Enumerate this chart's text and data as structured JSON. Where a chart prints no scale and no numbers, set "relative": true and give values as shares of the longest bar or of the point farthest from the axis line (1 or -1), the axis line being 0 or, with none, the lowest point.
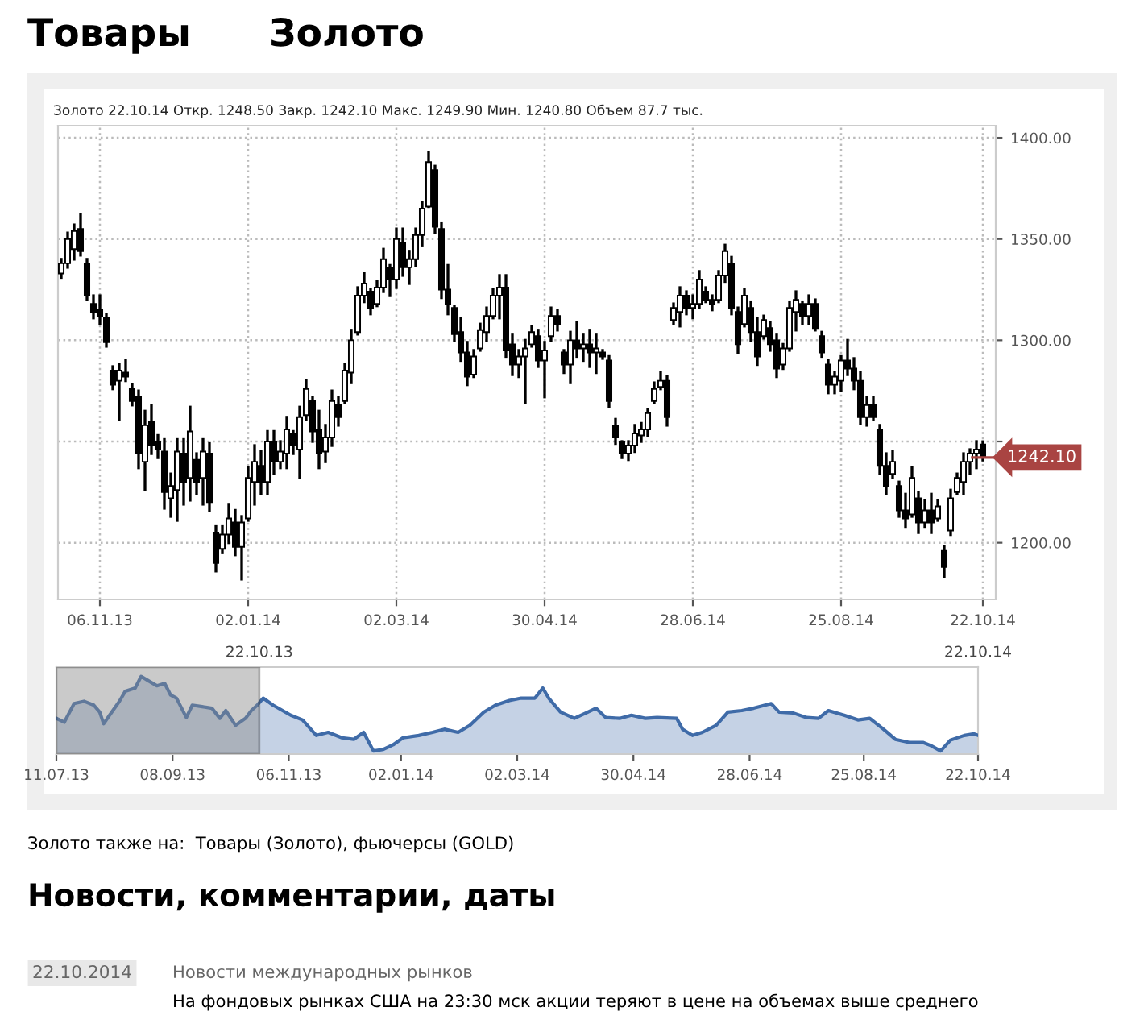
{
  "chart_data": [
    {
      "type": "candlestick",
      "title": "Золото",
      "subtitle": "Золото 22.10.14 Откр. 1248.50 Закр. 1242.10 Макс. 1249.90 Мин. 1240.80 Объем 87.7 тыс.",
      "annotations": [
        "Товары",
        "Золото также на:  Товары (Золото), фьючерсы (GOLD)",
        "Новости, комментарии, даты",
        "22.10.2014",
        "Новости международных рынков",
        "На фондовых рынках США на 23:30 мск акции теряют в цене на объемах выше среднего"
      ],
      "categories": [
        null,
        null,
        null,
        null,
        null,
        null,
        "06.11.13",
        null,
        null,
        null,
        null,
        null,
        null,
        null,
        null,
        null,
        null,
        null,
        null,
        null,
        null,
        null,
        null,
        null,
        null,
        null,
        null,
        null,
        null,
        "02.01.14",
        null,
        null,
        null,
        null,
        null,
        null,
        null,
        null,
        null,
        null,
        null,
        null,
        null,
        null,
        null,
        null,
        null,
        null,
        null,
        null,
        null,
        null,
        "02.03.14",
        null,
        null,
        null,
        null,
        null,
        null,
        null,
        null,
        null,
        null,
        null,
        null,
        null,
        null,
        null,
        null,
        null,
        null,
        null,
        null,
        null,
        null,
        "30.04.14",
        null,
        null,
        null,
        null,
        null,
        null,
        null,
        null,
        null,
        null,
        null,
        null,
        null,
        null,
        null,
        null,
        null,
        null,
        null,
        null,
        null,
        null,
        "28.06.14",
        null,
        null,
        null,
        null,
        null,
        null,
        null,
        null,
        null,
        null,
        null,
        null,
        null,
        null,
        null,
        null,
        null,
        null,
        null,
        null,
        null,
        null,
        "25.08.14",
        null,
        null,
        null,
        null,
        null,
        null,
        null,
        null,
        null,
        null,
        null,
        null,
        null,
        null,
        null,
        null,
        null,
        null,
        null,
        null,
        null,
        "22.10.14"
      ],
      "ohlc": [
        [
          1333,
          1340,
          1331,
          1338
        ],
        [
          1338,
          1353,
          1336,
          1350
        ],
        [
          1345,
          1357,
          1340,
          1354
        ],
        [
          1355,
          1362,
          1342,
          1344
        ],
        [
          1338,
          1340,
          1320,
          1322
        ],
        [
          1318,
          1322,
          1311,
          1314
        ],
        [
          1315,
          1322,
          1308,
          1312
        ],
        [
          1311,
          1313,
          1297,
          1299
        ],
        [
          1285,
          1287,
          1276,
          1278
        ],
        [
          1280,
          1288,
          1261,
          1285
        ],
        [
          1284,
          1290,
          1280,
          1282
        ],
        [
          1276,
          1278,
          1268,
          1270
        ],
        [
          1272,
          1275,
          1237,
          1244
        ],
        [
          1240,
          1265,
          1226,
          1258
        ],
        [
          1260,
          1268,
          1244,
          1248
        ],
        [
          1250,
          1253,
          1242,
          1246
        ],
        [
          1245,
          1251,
          1217,
          1225
        ],
        [
          1222,
          1234,
          1213,
          1228
        ],
        [
          1226,
          1251,
          1211,
          1245
        ],
        [
          1244,
          1251,
          1219,
          1230
        ],
        [
          1232,
          1267,
          1221,
          1255
        ],
        [
          1241,
          1244,
          1224,
          1230
        ],
        [
          1232,
          1251,
          1219,
          1245
        ],
        [
          1244,
          1249,
          1216,
          1220
        ],
        [
          1205,
          1208,
          1186,
          1190
        ],
        [
          1197,
          1208,
          1195,
          1204
        ],
        [
          1204,
          1219,
          1200,
          1212
        ],
        [
          1210,
          1216,
          1194,
          1198
        ],
        [
          1198,
          1213,
          1182,
          1210
        ],
        [
          1212,
          1237,
          1211,
          1232
        ],
        [
          1230,
          1248,
          1219,
          1240
        ],
        [
          1238,
          1245,
          1224,
          1230
        ],
        [
          1230,
          1255,
          1224,
          1250
        ],
        [
          1250,
          1255,
          1234,
          1240
        ],
        [
          1240,
          1250,
          1237,
          1245
        ],
        [
          1244,
          1262,
          1237,
          1256
        ],
        [
          1254,
          1255,
          1244,
          1248
        ],
        [
          1246,
          1267,
          1232,
          1262
        ],
        [
          1263,
          1280,
          1261,
          1276
        ],
        [
          1270,
          1272,
          1250,
          1255
        ],
        [
          1256,
          1265,
          1237,
          1244
        ],
        [
          1245,
          1258,
          1240,
          1252
        ],
        [
          1252,
          1275,
          1248,
          1270
        ],
        [
          1268,
          1272,
          1258,
          1262
        ],
        [
          1270,
          1288,
          1269,
          1285
        ],
        [
          1284,
          1305,
          1279,
          1300
        ],
        [
          1304,
          1326,
          1303,
          1322
        ],
        [
          1322,
          1333,
          1319,
          1328
        ],
        [
          1324,
          1325,
          1313,
          1316
        ],
        [
          1318,
          1329,
          1317,
          1326
        ],
        [
          1326,
          1345,
          1324,
          1340
        ],
        [
          1336,
          1337,
          1322,
          1330
        ],
        [
          1330,
          1355,
          1326,
          1350
        ],
        [
          1348,
          1355,
          1332,
          1336
        ],
        [
          1336,
          1344,
          1328,
          1340
        ],
        [
          1340,
          1355,
          1337,
          1352
        ],
        [
          1352,
          1368,
          1347,
          1365
        ],
        [
          1366,
          1393,
          1366,
          1388
        ],
        [
          1384,
          1386,
          1353,
          1356
        ],
        [
          1355,
          1358,
          1321,
          1325
        ],
        [
          1325,
          1337,
          1313,
          1318
        ],
        [
          1316,
          1317,
          1300,
          1303
        ],
        [
          1304,
          1311,
          1290,
          1294
        ],
        [
          1294,
          1299,
          1278,
          1282
        ],
        [
          1283,
          1295,
          1282,
          1292
        ],
        [
          1296,
          1308,
          1295,
          1305
        ],
        [
          1304,
          1316,
          1300,
          1312
        ],
        [
          1312,
          1325,
          1311,
          1322
        ],
        [
          1322,
          1332,
          1311,
          1326
        ],
        [
          1326,
          1332,
          1292,
          1295
        ],
        [
          1298,
          1303,
          1283,
          1288
        ],
        [
          1288,
          1295,
          1282,
          1292
        ],
        [
          1292,
          1300,
          1269,
          1296
        ],
        [
          1298,
          1307,
          1297,
          1304
        ],
        [
          1302,
          1305,
          1287,
          1290
        ],
        [
          1290,
          1299,
          1272,
          1295
        ],
        [
          1302,
          1316,
          1300,
          1312
        ],
        [
          1312,
          1315,
          1305,
          1308
        ],
        [
          1294,
          1295,
          1284,
          1288
        ],
        [
          1288,
          1304,
          1279,
          1300
        ],
        [
          1300,
          1309,
          1292,
          1296
        ],
        [
          1296,
          1303,
          1290,
          1298
        ],
        [
          1298,
          1305,
          1287,
          1294
        ],
        [
          1294,
          1303,
          1284,
          1296
        ],
        [
          1294,
          1295,
          1291,
          1292
        ],
        [
          1290,
          1292,
          1267,
          1270
        ],
        [
          1258,
          1261,
          1249,
          1252
        ],
        [
          1250,
          1250,
          1242,
          1244
        ],
        [
          1244,
          1250,
          1241,
          1248
        ],
        [
          1248,
          1258,
          1245,
          1254
        ],
        [
          1253,
          1259,
          1250,
          1256
        ],
        [
          1256,
          1266,
          1253,
          1264
        ],
        [
          1270,
          1279,
          1269,
          1276
        ],
        [
          1277,
          1284,
          1276,
          1280
        ],
        [
          1280,
          1282,
          1258,
          1262
        ],
        [
          1310,
          1318,
          1308,
          1316
        ],
        [
          1314,
          1326,
          1307,
          1322
        ],
        [
          1322,
          1324,
          1313,
          1316
        ],
        [
          1316,
          1322,
          1311,
          1318
        ],
        [
          1318,
          1334,
          1316,
          1330
        ],
        [
          1324,
          1326,
          1319,
          1320
        ],
        [
          1320,
          1322,
          1315,
          1318
        ],
        [
          1320,
          1334,
          1319,
          1332
        ],
        [
          1332,
          1347,
          1329,
          1344
        ],
        [
          1338,
          1341,
          1313,
          1316
        ],
        [
          1314,
          1316,
          1294,
          1298
        ],
        [
          1308,
          1325,
          1307,
          1322
        ],
        [
          1316,
          1319,
          1300,
          1304
        ],
        [
          1304,
          1311,
          1288,
          1292
        ],
        [
          1302,
          1312,
          1301,
          1310
        ],
        [
          1306,
          1309,
          1295,
          1298
        ],
        [
          1300,
          1303,
          1282,
          1286
        ],
        [
          1288,
          1298,
          1286,
          1296
        ],
        [
          1296,
          1319,
          1295,
          1316
        ],
        [
          1314,
          1324,
          1305,
          1320
        ],
        [
          1318,
          1319,
          1308,
          1312
        ],
        [
          1312,
          1322,
          1308,
          1318
        ],
        [
          1318,
          1320,
          1305,
          1306
        ],
        [
          1302,
          1304,
          1292,
          1294
        ],
        [
          1288,
          1290,
          1274,
          1278
        ],
        [
          1278,
          1284,
          1274,
          1282
        ],
        [
          1280,
          1292,
          1275,
          1290
        ],
        [
          1290,
          1300,
          1283,
          1286
        ],
        [
          1286,
          1291,
          1276,
          1280
        ],
        [
          1280,
          1284,
          1259,
          1262
        ],
        [
          1262,
          1272,
          1258,
          1268
        ],
        [
          1268,
          1272,
          1261,
          1262
        ],
        [
          1256,
          1258,
          1234,
          1238
        ],
        [
          1238,
          1244,
          1224,
          1228
        ],
        [
          1234,
          1245,
          1232,
          1240
        ],
        [
          1228,
          1230,
          1213,
          1216
        ],
        [
          1216,
          1224,
          1208,
          1212
        ],
        [
          1214,
          1237,
          1213,
          1232
        ],
        [
          1222,
          1225,
          1205,
          1210
        ],
        [
          1210,
          1221,
          1208,
          1216
        ],
        [
          1216,
          1224,
          1205,
          1210
        ],
        [
          1212,
          1221,
          1211,
          1218
        ],
        [
          1196,
          1198,
          1183,
          1188
        ],
        [
          1206,
          1226,
          1204,
          1222
        ],
        [
          1225,
          1234,
          1224,
          1232
        ],
        [
          1230,
          1244,
          1224,
          1240
        ],
        [
          1240,
          1246,
          1234,
          1244
        ],
        [
          1244,
          1250,
          1237,
          1246
        ],
        [
          1248.5,
          1249.9,
          1240.8,
          1242.1
        ]
      ],
      "color": "#000000",
      "ylim": [
        1172,
        1406
      ],
      "yticks": [
        {
          "value": 1200,
          "label": "1200.00"
        },
        {
          "value": 1250,
          "label": null
        },
        {
          "value": 1300,
          "label": "1300.00"
        },
        {
          "value": 1350,
          "label": "1350.00"
        },
        {
          "value": 1400,
          "label": "1400.00"
        }
      ],
      "grid": true,
      "ref_lines": [
        {
          "axis": "y",
          "value": 1242.1,
          "label": "1242.10",
          "color": "#a94442"
        }
      ]
    },
    {
      "type": "area",
      "relative": true,
      "tick_labels": "x",
      "x": [
        "2013-07-11",
        "2013-07-15",
        "2013-07-20",
        "2013-07-25",
        "2013-07-30",
        "2013-08-02",
        "2013-08-04",
        "2013-08-07",
        "2013-08-12",
        "2013-08-15",
        "2013-08-20",
        "2013-08-23",
        "2013-08-27",
        "2013-08-31",
        "2013-09-04",
        "2013-09-07",
        "2013-09-10",
        "2013-09-15",
        "2013-09-18",
        "2013-09-23",
        "2013-09-28",
        "2013-10-02",
        "2013-10-05",
        "2013-10-10",
        "2013-10-15",
        "2013-10-18",
        "2013-10-21",
        "2013-10-24",
        "2013-10-29",
        "2013-11-07",
        "2013-11-13",
        "2013-11-20",
        "2013-11-26",
        "2013-12-03",
        "2013-12-09",
        "2013-12-14",
        "2013-12-19",
        "2013-12-24",
        "2013-12-29",
        "2014-01-03",
        "2014-01-11",
        "2014-01-18",
        "2014-01-24",
        "2014-01-31",
        "2014-02-06",
        "2014-02-13",
        "2014-02-19",
        "2014-02-26",
        "2014-03-04",
        "2014-03-11",
        "2014-03-15",
        "2014-03-18",
        "2014-03-24",
        "2014-03-31",
        "2014-04-06",
        "2014-04-11",
        "2014-04-16",
        "2014-04-23",
        "2014-04-29",
        "2014-05-06",
        "2014-05-12",
        "2014-05-22",
        "2014-05-25",
        "2014-05-30",
        "2014-06-04",
        "2014-06-11",
        "2014-06-17",
        "2014-06-24",
        "2014-06-30",
        "2014-07-09",
        "2014-07-13",
        "2014-07-20",
        "2014-07-27",
        "2014-08-02",
        "2014-08-07",
        "2014-08-15",
        "2014-08-22",
        "2014-08-28",
        "2014-09-04",
        "2014-09-10",
        "2014-09-17",
        "2014-09-24",
        "2014-09-28",
        "2014-10-03",
        "2014-10-08",
        "2014-10-15",
        "2014-10-20",
        "2014-10-22"
      ],
      "series": [
        {
          "color": "#3f6ba8",
          "values": [
            0.46,
            0.41,
            0.65,
            0.68,
            0.63,
            0.54,
            0.39,
            0.5,
            0.68,
            0.81,
            0.85,
            1.0,
            0.94,
            0.88,
            0.91,
            0.76,
            0.72,
            0.47,
            0.63,
            0.61,
            0.59,
            0.46,
            0.56,
            0.37,
            0.46,
            0.56,
            0.63,
            0.72,
            0.63,
            0.5,
            0.44,
            0.24,
            0.28,
            0.21,
            0.19,
            0.28,
            0.04,
            0.06,
            0.12,
            0.21,
            0.24,
            0.28,
            0.32,
            0.28,
            0.37,
            0.54,
            0.63,
            0.69,
            0.72,
            0.72,
            0.85,
            0.72,
            0.54,
            0.46,
            0.53,
            0.59,
            0.47,
            0.46,
            0.5,
            0.46,
            0.47,
            0.46,
            0.32,
            0.24,
            0.28,
            0.37,
            0.54,
            0.56,
            0.59,
            0.65,
            0.54,
            0.53,
            0.47,
            0.46,
            0.56,
            0.5,
            0.44,
            0.46,
            0.32,
            0.19,
            0.15,
            0.15,
            0.11,
            0.04,
            0.18,
            0.24,
            0.26,
            0.24
          ]
        }
      ],
      "xlim": [
        "2013-07-11",
        "2014-10-22"
      ],
      "xticks": [
        {
          "value": "2013-07-11",
          "label": "11.07.13"
        },
        {
          "value": "2013-09-08",
          "label": "08.09.13"
        },
        {
          "value": "2013-11-06",
          "label": "06.11.13"
        },
        {
          "value": "2014-01-02",
          "label": "02.01.14"
        },
        {
          "value": "2014-03-02",
          "label": "02.03.14"
        },
        {
          "value": "2014-04-30",
          "label": "30.04.14"
        },
        {
          "value": "2014-06-28",
          "label": "28.06.14"
        },
        {
          "value": "2014-08-25",
          "label": "25.08.14"
        },
        {
          "value": "2014-10-22",
          "label": "22.10.14"
        }
      ],
      "bands": [
        {
          "axis": "x",
          "from": "2013-07-11",
          "to": "2013-10-22",
          "label": "22.10.13",
          "color": "#8c8c8c"
        }
      ],
      "annotations": [
        "22.10.14"
      ]
    }
  ]
}
